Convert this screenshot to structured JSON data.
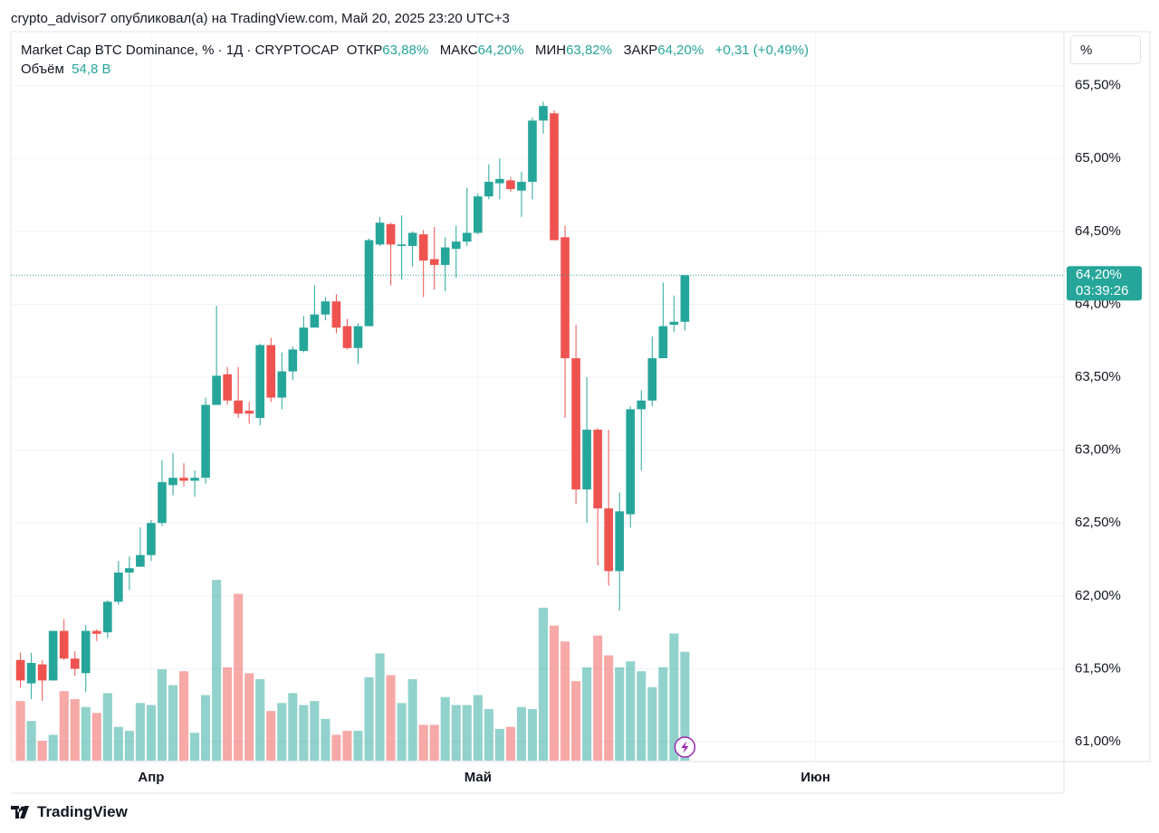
{
  "header": {
    "text": "crypto_advisor7 опубликовал(а) на TradingView.com, Май 20, 2025 23:20 UTC+3"
  },
  "legend": {
    "symbol": "Market Cap BTC Dominance, % · 1Д · CRYPTOCAP",
    "open_label": "ОТКР",
    "open": "63,88%",
    "high_label": "МАКС",
    "high": "64,20%",
    "low_label": "МИН",
    "low": "63,82%",
    "close_label": "ЗАКР",
    "close": "64,20%",
    "change": "+0,31 (+0,49%)",
    "volume_label": "Объём",
    "volume": "54,8 B"
  },
  "scale_button": "%",
  "footer": {
    "logo": "TradingView"
  },
  "chart_data": {
    "type": "candlestick",
    "open": [
      61.56,
      61.4,
      61.53,
      61.42,
      61.76,
      61.57,
      61.47,
      61.76,
      61.75,
      61.96,
      62.16,
      62.2,
      62.28,
      62.5,
      62.76,
      62.81,
      62.79,
      62.81,
      63.31,
      63.52,
      63.34,
      63.27,
      63.22,
      63.72,
      63.36,
      63.54,
      63.68,
      63.84,
      63.93,
      64.02,
      63.85,
      63.7,
      63.85,
      64.41,
      64.55,
      64.4,
      64.4,
      64.48,
      64.31,
      64.27,
      64.38,
      64.43,
      64.49,
      64.74,
      64.83,
      64.85,
      64.78,
      64.84,
      65.26,
      65.31,
      64.46,
      63.63,
      62.73,
      63.14,
      62.6,
      62.17,
      62.56,
      63.28,
      63.34,
      63.63,
      63.86,
      63.88
    ],
    "high": [
      61.61,
      61.61,
      61.56,
      61.76,
      61.84,
      61.62,
      61.8,
      61.77,
      61.97,
      62.24,
      62.27,
      62.47,
      62.52,
      62.93,
      62.98,
      62.91,
      62.86,
      63.36,
      63.99,
      63.57,
      63.57,
      63.33,
      63.73,
      63.77,
      63.67,
      63.71,
      63.92,
      64.13,
      64.05,
      64.07,
      63.9,
      63.87,
      64.45,
      64.6,
      64.56,
      64.61,
      64.5,
      64.51,
      64.53,
      64.46,
      64.54,
      64.8,
      64.76,
      64.96,
      65.0,
      64.87,
      64.91,
      65.28,
      65.39,
      65.33,
      64.54,
      63.86,
      63.5,
      63.15,
      63.14,
      62.71,
      63.3,
      63.41,
      63.78,
      64.15,
      64.06,
      64.2
    ],
    "low": [
      61.37,
      61.29,
      61.28,
      61.42,
      61.56,
      61.45,
      61.34,
      61.69,
      61.71,
      61.94,
      62.04,
      62.2,
      62.24,
      62.48,
      62.69,
      62.75,
      62.68,
      62.77,
      63.31,
      63.31,
      63.22,
      63.18,
      63.17,
      63.33,
      63.28,
      63.48,
      63.67,
      63.84,
      63.89,
      63.8,
      63.69,
      63.59,
      63.85,
      64.4,
      64.13,
      64.17,
      64.26,
      64.05,
      64.1,
      64.09,
      64.18,
      64.4,
      64.48,
      64.72,
      64.72,
      64.77,
      64.6,
      64.72,
      65.17,
      64.44,
      63.22,
      62.63,
      62.5,
      62.21,
      62.07,
      61.9,
      62.47,
      62.86,
      63.3,
      63.63,
      63.81,
      63.82
    ],
    "close": [
      61.42,
      61.54,
      61.42,
      61.76,
      61.57,
      61.5,
      61.76,
      61.74,
      61.96,
      62.16,
      62.19,
      62.28,
      62.5,
      62.78,
      62.81,
      62.79,
      62.81,
      63.31,
      63.51,
      63.34,
      63.25,
      63.25,
      63.72,
      63.36,
      63.54,
      63.69,
      63.84,
      63.93,
      64.02,
      63.84,
      63.7,
      63.85,
      64.44,
      64.56,
      64.41,
      64.41,
      64.49,
      64.3,
      64.27,
      64.39,
      64.43,
      64.49,
      64.74,
      64.84,
      64.86,
      64.79,
      64.84,
      65.26,
      65.36,
      64.44,
      63.63,
      62.73,
      63.14,
      62.6,
      62.17,
      62.58,
      63.28,
      63.34,
      63.63,
      63.85,
      63.88,
      64.2
    ],
    "volume": [
      30,
      20,
      10,
      13,
      35,
      31,
      27,
      24,
      34,
      17,
      15,
      29,
      28,
      46,
      38,
      45,
      14,
      33,
      91,
      47,
      84,
      44,
      41,
      25,
      29,
      34,
      28,
      30,
      21,
      13,
      15,
      15,
      42,
      54,
      43,
      29,
      41,
      18,
      18,
      32,
      28,
      28,
      33,
      26,
      16,
      17,
      27,
      26,
      77,
      68,
      60,
      40,
      47,
      63,
      53,
      47,
      50,
      45,
      37,
      47,
      64,
      54.8
    ],
    "colors": {
      "up": "#26a69a",
      "down": "#ef5350"
    },
    "xlim": [
      -0.88,
      95.8
    ],
    "xticks": [
      {
        "value": 12,
        "label": "Апр"
      },
      {
        "value": 42,
        "label": "Май"
      },
      {
        "value": 73,
        "label": "Июн"
      }
    ],
    "ylim": [
      60.87,
      65.87
    ],
    "yticks": [
      {
        "value": 61,
        "label": "61,00%"
      },
      {
        "value": 61.5,
        "label": "61,50%"
      },
      {
        "value": 62,
        "label": "62,00%"
      },
      {
        "value": 62.5,
        "label": "62,50%"
      },
      {
        "value": 63,
        "label": "63,00%"
      },
      {
        "value": 63.5,
        "label": "63,50%"
      },
      {
        "value": 64,
        "label": "64,00%"
      },
      {
        "value": 64.5,
        "label": "64,50%"
      },
      {
        "value": 65,
        "label": "65,00%"
      },
      {
        "value": 65.5,
        "label": "65,50%"
      }
    ],
    "y2lim": [
      0,
      367
    ],
    "grid": true,
    "last_price_label": "64,20%",
    "countdown": "03:39:26"
  }
}
